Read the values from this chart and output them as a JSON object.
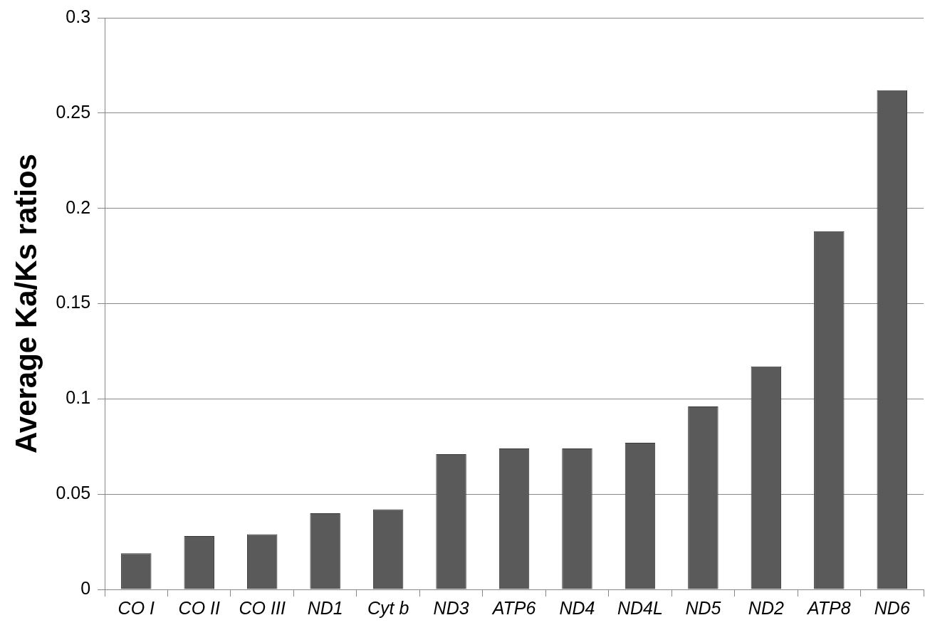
{
  "chart_data": {
    "type": "bar",
    "ylabel": "Average Ka/Ks ratios",
    "categories": [
      "CO I",
      "CO II",
      "CO III",
      "ND1",
      "Cyt b",
      "ND3",
      "ATP6",
      "ND4",
      "ND4L",
      "ND5",
      "ND2",
      "ATP8",
      "ND6"
    ],
    "values": [
      0.019,
      0.028,
      0.029,
      0.04,
      0.042,
      0.071,
      0.074,
      0.074,
      0.077,
      0.096,
      0.117,
      0.188,
      0.262
    ],
    "color": "#5a5a5a",
    "ylim": [
      0,
      0.3
    ],
    "yticks": [
      0,
      0.05,
      0.1,
      0.15,
      0.2,
      0.25,
      0.3
    ],
    "grid": "y",
    "legend": false
  }
}
